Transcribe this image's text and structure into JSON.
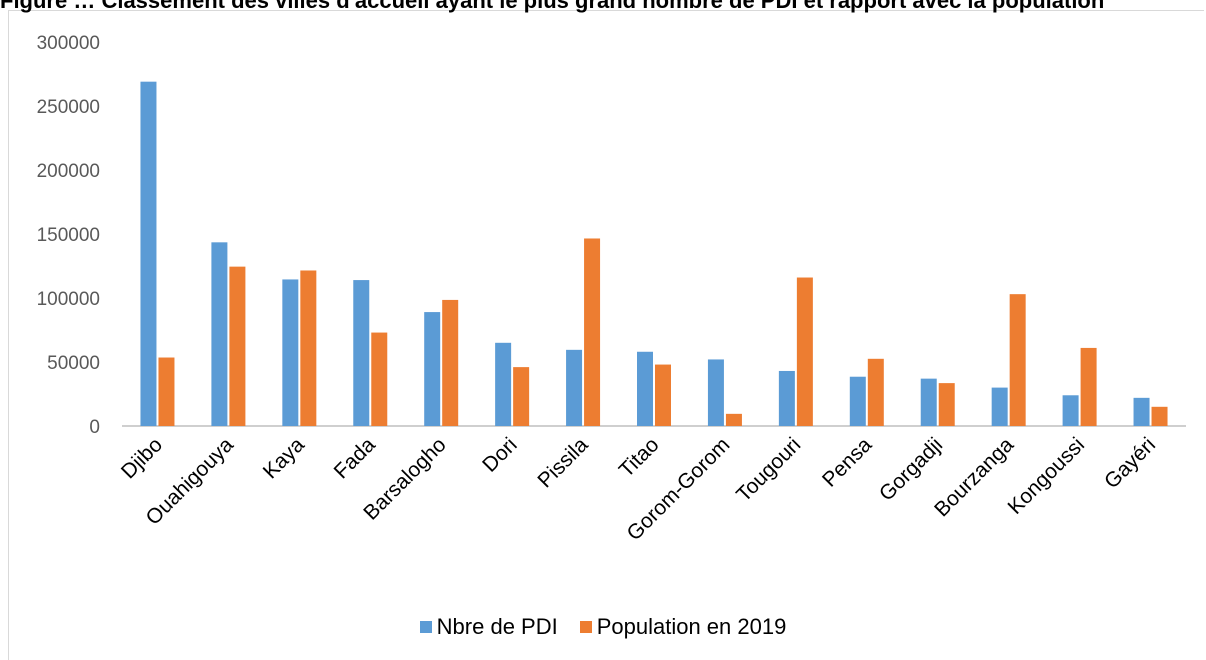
{
  "caption": "Figure … Classement des villes d'accueil ayant le plus grand nombre de PDI et rapport avec la population",
  "chart_data": {
    "type": "bar",
    "categories": [
      "Djibo",
      "Ouahigouya",
      "Kaya",
      "Fada",
      "Barsalogho",
      "Dori",
      "Pissila",
      "Titao",
      "Gorom-Gorom",
      "Tougouri",
      "Pensa",
      "Gorgadji",
      "Bourzanga",
      "Kongoussi",
      "Gayéri"
    ],
    "series": [
      {
        "name": "Nbre de PDI",
        "color": "#5b9bd5",
        "values": [
          269000,
          143500,
          114500,
          114000,
          89000,
          65000,
          59500,
          58000,
          52000,
          43000,
          38500,
          37000,
          30000,
          24000,
          22000
        ]
      },
      {
        "name": "Population en 2019",
        "color": "#ed7d31",
        "values": [
          53500,
          124500,
          121500,
          73000,
          98500,
          46000,
          146500,
          48000,
          9500,
          116000,
          52500,
          33500,
          103000,
          61000,
          15000
        ]
      }
    ],
    "yticks": [
      "0",
      "50000",
      "100000",
      "150000",
      "200000",
      "250000",
      "300000"
    ],
    "ylim": [
      0,
      300000
    ],
    "grid": false,
    "legend_position": "bottom"
  }
}
